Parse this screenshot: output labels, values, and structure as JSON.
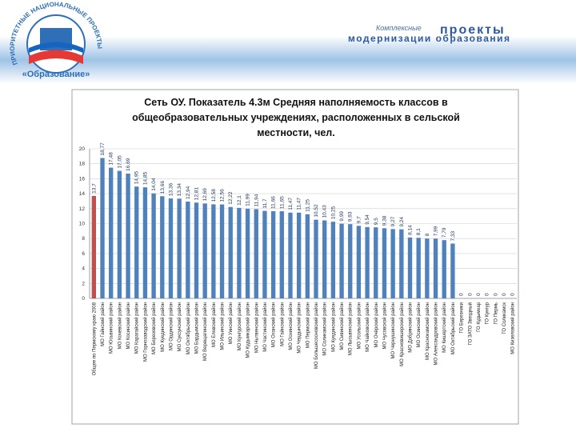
{
  "header": {
    "arc_text": "ПРИОРИТЕТНЫЕ НАЦИОНАЛЬНЫЕ ПРОЕКТЫ",
    "project": "«Образование»",
    "line1a": "Комплексные",
    "line1b": "проекты",
    "line2": "модернизации образования"
  },
  "chart_data": {
    "type": "bar",
    "title": [
      "Сеть ОУ. Показатель 4.3м Средняя наполняемость классов в",
      "общеобразовательных учреждениях, расположенных в сельской",
      "местности, чел."
    ],
    "categories": [
      "Общее по Пермскому краю 2008",
      "МО Гайнский район",
      "МО Юсьвинский район",
      "МО Кочевский район",
      "МО Косинский район",
      "МО Карагайский район",
      "МО Горнозаводский район",
      "МО Березовский район",
      "МО Куединский район",
      "МО Ординский район",
      "МО Суксунский район",
      "МО Октябрьский район",
      "МО Бардымский район",
      "МО Верещагинский район",
      "МО Еловский район",
      "МО Ильинский район",
      "МО Уинский район",
      "МО Кунгурский район",
      "МО Кудымкарский район",
      "МО Нытвенский район",
      "МО Частинский район",
      "МО Оханский район",
      "МО Гайнский район",
      "МО Оснинский район",
      "МО Чердынский район",
      "МО Пермский район",
      "МО Большесосновский район",
      "МО Соликамский район",
      "МО Куединский район",
      "МО Сивинский район",
      "МО Лысьвенский район",
      "МО Усольский район",
      "МО Чайковский район",
      "МО Очёрский район",
      "МО Чусовской район",
      "МО Чернушинский район",
      "МО Красновишерский район",
      "МО Добрянский район",
      "МО Осинский район",
      "МО Краснокамский район",
      "МО Александровский район",
      "МО Кишертский район",
      "МО Октябрьский район",
      "ГО Березники",
      "ГО ЗАТО Звездный",
      "ГО Кудымкар",
      "ГО Кунгур",
      "ГО Пермь",
      "ГО Соликамск",
      "МО Кизеловский район"
    ],
    "values": [
      13.7,
      18.77,
      17.48,
      17.05,
      16.69,
      14.95,
      14.85,
      14.04,
      13.66,
      13.36,
      13.34,
      12.94,
      12.81,
      12.69,
      12.58,
      12.56,
      12.22,
      12.1,
      11.99,
      11.94,
      11.7,
      11.66,
      11.65,
      11.47,
      11.47,
      11.25,
      10.52,
      10.43,
      10.25,
      9.99,
      9.93,
      9.7,
      9.54,
      9.5,
      9.38,
      9.27,
      9.24,
      8.14,
      8.1,
      8,
      7.99,
      7.79,
      7.33,
      0,
      0,
      0,
      0,
      0,
      0,
      0
    ],
    "value_labels": [
      "13,7",
      "18,77",
      "17,48",
      "17,05",
      "16,69",
      "14,95",
      "14,85",
      "14,04",
      "13,66",
      "13,36",
      "13,34",
      "12,94",
      "12,81",
      "12,69",
      "12,58",
      "12,56",
      "12,22",
      "12,1",
      "11,99",
      "11,94",
      "11,7",
      "11,66",
      "11,65",
      "11,47",
      "11,47",
      "11,25",
      "10,52",
      "10,43",
      "10,25",
      "9,99",
      "9,93",
      "9,7",
      "9,54",
      "9,5",
      "9,38",
      "9,27",
      "9,24",
      "8,14",
      "8,1",
      "8",
      "7,99",
      "7,79",
      "7,33",
      "0",
      "0",
      "0",
      "0",
      "0",
      "0",
      "0"
    ],
    "colors": [
      "#c0504d",
      "#4f81bd",
      "#4f81bd",
      "#4f81bd",
      "#4f81bd",
      "#4f81bd",
      "#4f81bd",
      "#4f81bd",
      "#4f81bd",
      "#4f81bd",
      "#4f81bd",
      "#4f81bd",
      "#4f81bd",
      "#4f81bd",
      "#4f81bd",
      "#4f81bd",
      "#4f81bd",
      "#4f81bd",
      "#4f81bd",
      "#4f81bd",
      "#4f81bd",
      "#4f81bd",
      "#4f81bd",
      "#4f81bd",
      "#4f81bd",
      "#4f81bd",
      "#4f81bd",
      "#4f81bd",
      "#4f81bd",
      "#4f81bd",
      "#4f81bd",
      "#4f81bd",
      "#4f81bd",
      "#4f81bd",
      "#4f81bd",
      "#4f81bd",
      "#4f81bd",
      "#4f81bd",
      "#4f81bd",
      "#4f81bd",
      "#4f81bd",
      "#4f81bd",
      "#4f81bd",
      "#4f81bd",
      "#4f81bd",
      "#4f81bd",
      "#4f81bd",
      "#4f81bd",
      "#4f81bd",
      "#4f81bd"
    ],
    "ylim": [
      0,
      20
    ],
    "yticks": [
      0,
      2,
      4,
      6,
      8,
      10,
      12,
      14,
      16,
      18,
      20
    ],
    "grid": true
  }
}
